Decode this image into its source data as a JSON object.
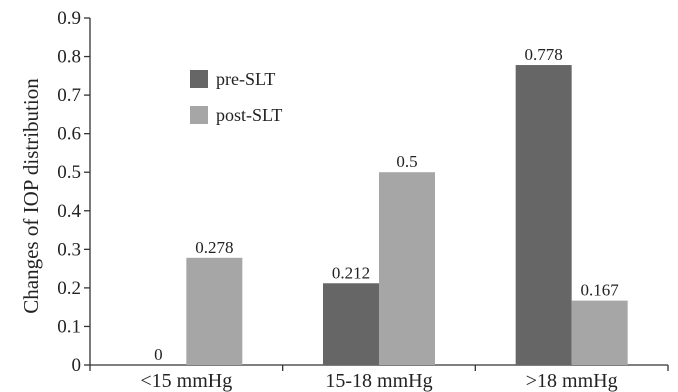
{
  "chart_data": {
    "type": "bar",
    "title": "",
    "xlabel": "",
    "ylabel": "Changes of IOP distribution",
    "ylim": [
      0,
      0.9
    ],
    "yticks": [
      "0",
      "0.1",
      "0.2",
      "0.3",
      "0.4",
      "0.5",
      "0.6",
      "0.7",
      "0.8",
      "0.9"
    ],
    "categories": [
      "<15 mmHg",
      "15-18 mmHg",
      ">18 mmHg"
    ],
    "series": [
      {
        "name": "pre-SLT",
        "color": "#666666",
        "values": [
          0,
          0.212,
          0.778
        ],
        "labels": [
          "0",
          "0.212",
          "0.778"
        ]
      },
      {
        "name": "post-SLT",
        "color": "#a6a6a6",
        "values": [
          0.278,
          0.5,
          0.167
        ],
        "labels": [
          "0.278",
          "0.5",
          "0.167"
        ]
      }
    ],
    "grid": false,
    "legend": "top-left"
  }
}
